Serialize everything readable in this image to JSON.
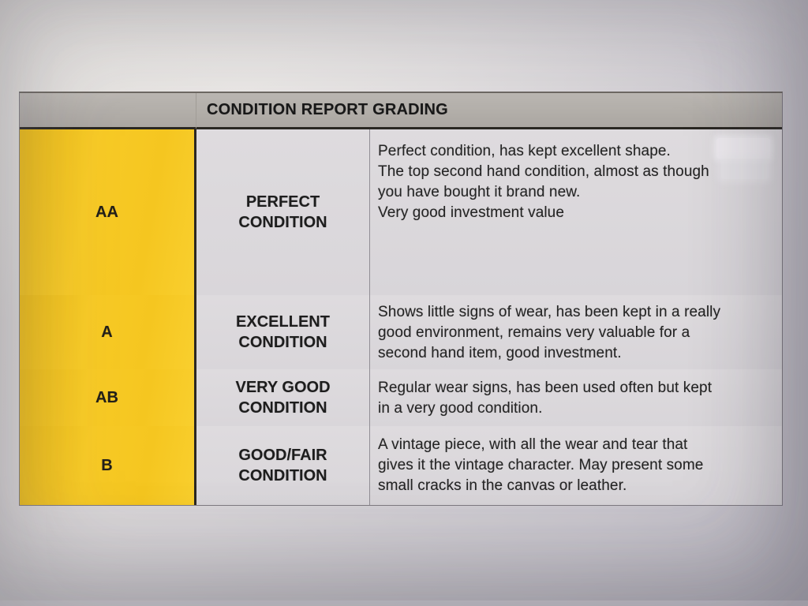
{
  "document": {
    "header": {
      "title": "CONDITION REPORT GRADING"
    },
    "rows": [
      {
        "grade": "AA",
        "label": "PERFECT CONDITION",
        "paragraphs": [
          [
            "Perfect condition, has kept excellent shape."
          ],
          [
            "The top second hand condition, almost as though",
            "you have bought it brand new."
          ],
          [
            "Very good investment value"
          ]
        ]
      },
      {
        "grade": "A",
        "label": "EXCELLENT CONDITION",
        "paragraphs": [
          [
            "Shows little signs of wear, has been kept in a really",
            "good environment, remains very valuable for a",
            "second hand item, good investment."
          ]
        ]
      },
      {
        "grade": "AB",
        "label": "VERY GOOD CONDITION",
        "paragraphs": [
          [
            "Regular wear signs, has been used often but kept",
            "in a very good condition."
          ]
        ]
      },
      {
        "grade": "B",
        "label": "GOOD/FAIR CONDITION",
        "paragraphs": [
          [
            "A vintage piece, with all the wear and tear that",
            "gives it the vintage character. May present some",
            "small cracks in the canvas or leather."
          ]
        ]
      }
    ],
    "colors": {
      "grade_column_yellow": "#f7c824",
      "header_gray": "#b3afaa",
      "cell_gray": "#dcd9dc",
      "divider_black": "#2b2823",
      "text": "#222222",
      "paper": "#d5d2d6"
    }
  }
}
